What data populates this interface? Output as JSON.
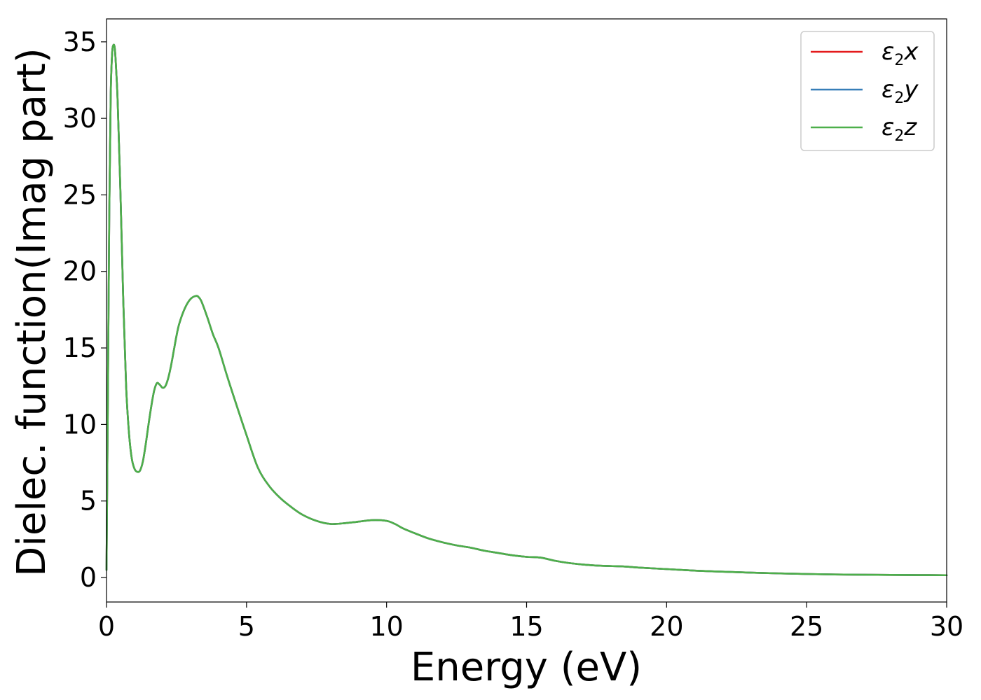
{
  "chart_data": {
    "type": "line",
    "xlabel": "Energy (eV)",
    "ylabel": "Dielec. function(Imag part)",
    "xlim": [
      0,
      30
    ],
    "ylim": [
      -1.6,
      36.5
    ],
    "xticks": [
      0,
      5,
      10,
      15,
      20,
      25,
      30
    ],
    "yticks": [
      0,
      5,
      10,
      15,
      20,
      25,
      30,
      35
    ],
    "grid": false,
    "legend_position": "top-right",
    "x": [
      0,
      0.05,
      0.1,
      0.15,
      0.2,
      0.25,
      0.3,
      0.35,
      0.4,
      0.5,
      0.6,
      0.7,
      0.8,
      0.9,
      1.0,
      1.1,
      1.2,
      1.3,
      1.4,
      1.5,
      1.6,
      1.7,
      1.8,
      1.9,
      2.0,
      2.1,
      2.2,
      2.3,
      2.4,
      2.5,
      2.6,
      2.8,
      3.0,
      3.2,
      3.3,
      3.4,
      3.6,
      3.8,
      4.0,
      4.3,
      4.6,
      5.0,
      5.4,
      5.8,
      6.2,
      6.6,
      7.0,
      7.5,
      8.0,
      8.5,
      9.0,
      9.5,
      10.0,
      10.3,
      10.6,
      11.0,
      11.5,
      12.0,
      12.5,
      13.0,
      13.5,
      14.0,
      14.5,
      15.0,
      15.5,
      16.0,
      16.5,
      17.0,
      17.5,
      18.0,
      18.5,
      19.0,
      20.0,
      21.0,
      22.0,
      23.0,
      24.0,
      25.0,
      26.0,
      27.0,
      28.0,
      29.0,
      30.0
    ],
    "series": [
      {
        "name": "x",
        "color": "#e41a1c",
        "values": [
          0.5,
          12.0,
          24.0,
          31.5,
          34.2,
          34.8,
          34.5,
          33.0,
          31.0,
          25.0,
          18.0,
          12.5,
          9.5,
          7.8,
          7.1,
          6.9,
          7.0,
          7.6,
          8.7,
          10.0,
          11.2,
          12.2,
          12.7,
          12.6,
          12.4,
          12.5,
          13.0,
          13.8,
          14.8,
          15.8,
          16.6,
          17.6,
          18.2,
          18.4,
          18.3,
          18.0,
          17.0,
          15.9,
          15.0,
          13.2,
          11.5,
          9.3,
          7.2,
          6.0,
          5.2,
          4.6,
          4.1,
          3.7,
          3.5,
          3.55,
          3.65,
          3.75,
          3.7,
          3.5,
          3.2,
          2.9,
          2.55,
          2.3,
          2.1,
          1.95,
          1.75,
          1.6,
          1.45,
          1.35,
          1.3,
          1.1,
          0.95,
          0.85,
          0.78,
          0.75,
          0.72,
          0.65,
          0.55,
          0.45,
          0.38,
          0.32,
          0.27,
          0.23,
          0.2,
          0.18,
          0.17,
          0.16,
          0.15
        ]
      },
      {
        "name": "y",
        "color": "#377eb8",
        "values": [
          0.5,
          12.0,
          24.0,
          31.5,
          34.2,
          34.8,
          34.5,
          33.0,
          31.0,
          25.0,
          18.0,
          12.5,
          9.5,
          7.8,
          7.1,
          6.9,
          7.0,
          7.6,
          8.7,
          10.0,
          11.2,
          12.2,
          12.7,
          12.6,
          12.4,
          12.5,
          13.0,
          13.8,
          14.8,
          15.8,
          16.6,
          17.6,
          18.2,
          18.4,
          18.3,
          18.0,
          17.0,
          15.9,
          15.0,
          13.2,
          11.5,
          9.3,
          7.2,
          6.0,
          5.2,
          4.6,
          4.1,
          3.7,
          3.5,
          3.55,
          3.65,
          3.75,
          3.7,
          3.5,
          3.2,
          2.9,
          2.55,
          2.3,
          2.1,
          1.95,
          1.75,
          1.6,
          1.45,
          1.35,
          1.3,
          1.1,
          0.95,
          0.85,
          0.78,
          0.75,
          0.72,
          0.65,
          0.55,
          0.45,
          0.38,
          0.32,
          0.27,
          0.23,
          0.2,
          0.18,
          0.17,
          0.16,
          0.15
        ]
      },
      {
        "name": "z",
        "color": "#4daf4a",
        "values": [
          0.5,
          12.0,
          24.0,
          31.5,
          34.2,
          34.8,
          34.5,
          33.0,
          31.0,
          25.0,
          18.0,
          12.5,
          9.5,
          7.8,
          7.1,
          6.9,
          7.0,
          7.6,
          8.7,
          10.0,
          11.2,
          12.2,
          12.7,
          12.6,
          12.4,
          12.5,
          13.0,
          13.8,
          14.8,
          15.8,
          16.6,
          17.6,
          18.2,
          18.4,
          18.3,
          18.0,
          17.0,
          15.9,
          15.0,
          13.2,
          11.5,
          9.3,
          7.2,
          6.0,
          5.2,
          4.6,
          4.1,
          3.7,
          3.5,
          3.55,
          3.65,
          3.75,
          3.7,
          3.5,
          3.2,
          2.9,
          2.55,
          2.3,
          2.1,
          1.95,
          1.75,
          1.6,
          1.45,
          1.35,
          1.3,
          1.1,
          0.95,
          0.85,
          0.78,
          0.75,
          0.72,
          0.65,
          0.55,
          0.45,
          0.38,
          0.32,
          0.27,
          0.23,
          0.2,
          0.18,
          0.17,
          0.16,
          0.15
        ]
      }
    ],
    "legend": [
      {
        "symbol": "ε",
        "sub": "2",
        "axis": "x",
        "color": "#e41a1c"
      },
      {
        "symbol": "ε",
        "sub": "2",
        "axis": "y",
        "color": "#377eb8"
      },
      {
        "symbol": "ε",
        "sub": "2",
        "axis": "z",
        "color": "#4daf4a"
      }
    ]
  }
}
